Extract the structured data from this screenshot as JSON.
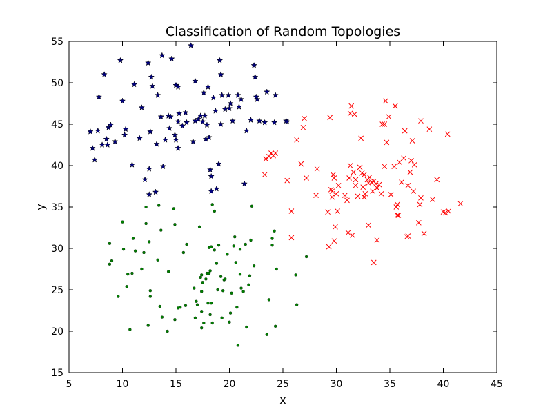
{
  "chart_data": {
    "type": "scatter",
    "title": "Classification of Random Topologies",
    "xlabel": "x",
    "ylabel": "y",
    "xlim": [
      5,
      45
    ],
    "ylim": [
      15,
      55
    ],
    "xticks": [
      5,
      10,
      15,
      20,
      25,
      30,
      35,
      40,
      45
    ],
    "yticks": [
      15,
      20,
      25,
      30,
      35,
      40,
      45,
      50,
      55
    ],
    "grid": false,
    "legend": "none",
    "series": [
      {
        "marker": "star",
        "color": "#00007f",
        "points": [
          [
            7.0,
            44.1
          ],
          [
            7.2,
            42.1
          ],
          [
            7.4,
            40.7
          ],
          [
            7.7,
            44.2
          ],
          [
            7.8,
            48.3
          ],
          [
            8.1,
            42.5
          ],
          [
            8.3,
            51.0
          ],
          [
            8.5,
            43.2
          ],
          [
            8.7,
            44.6
          ],
          [
            8.9,
            44.9
          ],
          [
            8.6,
            42.5
          ],
          [
            9.3,
            42.9
          ],
          [
            9.8,
            52.7
          ],
          [
            10.0,
            47.8
          ],
          [
            10.2,
            43.7
          ],
          [
            10.3,
            44.4
          ],
          [
            10.9,
            40.1
          ],
          [
            11.1,
            49.8
          ],
          [
            11.6,
            43.3
          ],
          [
            11.8,
            47.0
          ],
          [
            12.1,
            38.3
          ],
          [
            12.4,
            52.4
          ],
          [
            12.5,
            39.6
          ],
          [
            12.6,
            44.1
          ],
          [
            12.7,
            50.7
          ],
          [
            12.5,
            36.5
          ],
          [
            12.8,
            49.6
          ],
          [
            13.1,
            36.8
          ],
          [
            13.2,
            42.6
          ],
          [
            13.3,
            48.5
          ],
          [
            13.6,
            45.9
          ],
          [
            13.7,
            53.3
          ],
          [
            13.8,
            39.9
          ],
          [
            14.0,
            43.1
          ],
          [
            14.3,
            46.0
          ],
          [
            14.5,
            45.9
          ],
          [
            14.6,
            52.9
          ],
          [
            14.4,
            44.5
          ],
          [
            14.9,
            43.7
          ],
          [
            15.0,
            49.7
          ],
          [
            15.2,
            49.5
          ],
          [
            15.2,
            45.3
          ],
          [
            15.3,
            46.3
          ],
          [
            15.0,
            43.1
          ],
          [
            15.2,
            42.1
          ],
          [
            15.6,
            44.8
          ],
          [
            15.9,
            46.4
          ],
          [
            16.0,
            45.2
          ],
          [
            16.4,
            54.5
          ],
          [
            16.6,
            42.9
          ],
          [
            16.8,
            50.2
          ],
          [
            16.8,
            45.4
          ],
          [
            17.1,
            45.6
          ],
          [
            17.3,
            46.0
          ],
          [
            17.5,
            45.3
          ],
          [
            17.6,
            48.8
          ],
          [
            17.7,
            46.0
          ],
          [
            17.8,
            43.2
          ],
          [
            17.9,
            44.9
          ],
          [
            18.0,
            49.5
          ],
          [
            18.1,
            43.4
          ],
          [
            18.2,
            39.5
          ],
          [
            18.3,
            38.7
          ],
          [
            18.3,
            36.9
          ],
          [
            18.5,
            48.2
          ],
          [
            18.7,
            46.6
          ],
          [
            18.8,
            37.2
          ],
          [
            19.0,
            40.2
          ],
          [
            19.1,
            52.7
          ],
          [
            19.2,
            51.0
          ],
          [
            19.2,
            45.0
          ],
          [
            19.3,
            48.5
          ],
          [
            19.6,
            46.8
          ],
          [
            19.9,
            48.5
          ],
          [
            20.0,
            46.9
          ],
          [
            20.1,
            47.5
          ],
          [
            20.3,
            45.4
          ],
          [
            20.8,
            48.5
          ],
          [
            20.9,
            47.1
          ],
          [
            21.1,
            48.0
          ],
          [
            21.4,
            37.8
          ],
          [
            21.6,
            44.2
          ],
          [
            22.0,
            45.5
          ],
          [
            22.3,
            52.1
          ],
          [
            22.5,
            48.3
          ],
          [
            22.4,
            50.7
          ],
          [
            22.6,
            48.0
          ],
          [
            22.8,
            45.4
          ],
          [
            23.5,
            48.9
          ],
          [
            23.3,
            45.2
          ],
          [
            24.2,
            45.2
          ],
          [
            24.3,
            48.5
          ],
          [
            25.3,
            45.4
          ],
          [
            25.4,
            45.3
          ]
        ]
      },
      {
        "marker": "x",
        "color": "#ff0000",
        "points": [
          [
            23.3,
            38.9
          ],
          [
            23.4,
            40.8
          ],
          [
            23.7,
            41.1
          ],
          [
            23.9,
            41.5
          ],
          [
            24.1,
            41.2
          ],
          [
            24.3,
            41.5
          ],
          [
            25.4,
            38.2
          ],
          [
            25.8,
            34.5
          ],
          [
            25.8,
            31.3
          ],
          [
            26.3,
            43.1
          ],
          [
            26.7,
            40.2
          ],
          [
            27.0,
            45.7
          ],
          [
            26.9,
            44.6
          ],
          [
            27.2,
            38.5
          ],
          [
            28.1,
            36.4
          ],
          [
            28.2,
            39.6
          ],
          [
            29.2,
            34.4
          ],
          [
            29.3,
            30.2
          ],
          [
            29.4,
            45.8
          ],
          [
            29.5,
            37.1
          ],
          [
            29.6,
            36.9
          ],
          [
            29.7,
            38.9
          ],
          [
            29.8,
            38.5
          ],
          [
            29.6,
            36.2
          ],
          [
            29.8,
            30.9
          ],
          [
            29.9,
            32.6
          ],
          [
            30.0,
            36.6
          ],
          [
            30.2,
            37.6
          ],
          [
            30.1,
            34.5
          ],
          [
            30.8,
            36.4
          ],
          [
            31.0,
            35.8
          ],
          [
            31.1,
            31.9
          ],
          [
            31.2,
            38.5
          ],
          [
            31.3,
            40.0
          ],
          [
            31.3,
            46.3
          ],
          [
            31.4,
            47.2
          ],
          [
            31.5,
            31.6
          ],
          [
            31.6,
            39.2
          ],
          [
            31.7,
            46.2
          ],
          [
            31.8,
            38.3
          ],
          [
            31.8,
            37.6
          ],
          [
            32.0,
            36.3
          ],
          [
            32.2,
            39.8
          ],
          [
            32.3,
            43.3
          ],
          [
            32.4,
            39.1
          ],
          [
            32.5,
            37.4
          ],
          [
            32.6,
            38.9
          ],
          [
            32.6,
            36.2
          ],
          [
            32.7,
            36.6
          ],
          [
            32.9,
            38.3
          ],
          [
            33.0,
            37.9
          ],
          [
            33.0,
            32.8
          ],
          [
            33.1,
            38.6
          ],
          [
            33.3,
            38.0
          ],
          [
            33.4,
            36.9
          ],
          [
            33.5,
            28.3
          ],
          [
            33.5,
            38.1
          ],
          [
            33.7,
            37.8
          ],
          [
            33.8,
            37.3
          ],
          [
            33.8,
            31.0
          ],
          [
            34.0,
            37.7
          ],
          [
            34.2,
            36.6
          ],
          [
            34.3,
            45.0
          ],
          [
            34.5,
            45.0
          ],
          [
            34.6,
            47.8
          ],
          [
            34.7,
            42.8
          ],
          [
            34.5,
            39.9
          ],
          [
            34.9,
            45.9
          ],
          [
            35.1,
            36.5
          ],
          [
            35.4,
            39.9
          ],
          [
            35.5,
            47.2
          ],
          [
            35.6,
            35.0
          ],
          [
            35.7,
            35.3
          ],
          [
            35.7,
            34.0
          ],
          [
            35.8,
            34.0
          ],
          [
            35.9,
            40.4
          ],
          [
            36.1,
            38.0
          ],
          [
            36.3,
            40.9
          ],
          [
            36.4,
            44.2
          ],
          [
            36.6,
            31.4
          ],
          [
            36.7,
            31.5
          ],
          [
            36.9,
            39.2
          ],
          [
            37.0,
            40.6
          ],
          [
            37.1,
            43.0
          ],
          [
            37.2,
            36.9
          ],
          [
            37.3,
            40.1
          ],
          [
            37.7,
            33.1
          ],
          [
            37.8,
            35.3
          ],
          [
            37.9,
            36.1
          ],
          [
            37.9,
            45.4
          ],
          [
            38.2,
            31.8
          ],
          [
            38.7,
            44.4
          ],
          [
            39.0,
            35.9
          ],
          [
            39.4,
            38.3
          ],
          [
            40.0,
            34.4
          ],
          [
            40.2,
            34.3
          ],
          [
            40.4,
            43.8
          ],
          [
            41.6,
            35.4
          ],
          [
            40.5,
            34.5
          ],
          [
            36.7,
            37.6
          ]
        ]
      },
      {
        "marker": "dot",
        "color": "#007f00",
        "points": [
          [
            8.8,
            30.6
          ],
          [
            8.8,
            28.1
          ],
          [
            9.0,
            28.5
          ],
          [
            9.6,
            24.2
          ],
          [
            10.0,
            33.2
          ],
          [
            10.1,
            29.9
          ],
          [
            10.4,
            25.4
          ],
          [
            10.5,
            26.9
          ],
          [
            10.7,
            20.2
          ],
          [
            10.9,
            27.0
          ],
          [
            11.0,
            31.2
          ],
          [
            11.2,
            29.7
          ],
          [
            11.8,
            27.5
          ],
          [
            12.0,
            29.5
          ],
          [
            12.2,
            35.0
          ],
          [
            12.2,
            33.0
          ],
          [
            12.4,
            20.7
          ],
          [
            12.5,
            30.8
          ],
          [
            12.6,
            24.9
          ],
          [
            12.6,
            24.2
          ],
          [
            13.3,
            28.6
          ],
          [
            13.4,
            35.2
          ],
          [
            13.5,
            23.0
          ],
          [
            13.6,
            32.2
          ],
          [
            13.7,
            21.7
          ],
          [
            14.2,
            20.0
          ],
          [
            14.3,
            27.2
          ],
          [
            14.8,
            34.8
          ],
          [
            14.9,
            21.4
          ],
          [
            14.9,
            32.9
          ],
          [
            15.2,
            22.8
          ],
          [
            15.4,
            22.9
          ],
          [
            15.7,
            29.5
          ],
          [
            15.9,
            23.1
          ],
          [
            16.0,
            30.5
          ],
          [
            16.7,
            25.2
          ],
          [
            16.8,
            21.6
          ],
          [
            16.9,
            23.6
          ],
          [
            17.0,
            23.2
          ],
          [
            17.2,
            32.6
          ],
          [
            17.3,
            26.5
          ],
          [
            17.4,
            26.8
          ],
          [
            17.4,
            24.8
          ],
          [
            17.4,
            22.4
          ],
          [
            17.4,
            20.4
          ],
          [
            17.5,
            25.9
          ],
          [
            17.6,
            21.0
          ],
          [
            17.8,
            26.3
          ],
          [
            17.9,
            27.0
          ],
          [
            18.0,
            23.4
          ],
          [
            18.1,
            27.0
          ],
          [
            18.1,
            30.1
          ],
          [
            18.2,
            27.3
          ],
          [
            18.2,
            22.0
          ],
          [
            18.3,
            30.2
          ],
          [
            18.3,
            23.4
          ],
          [
            18.4,
            35.3
          ],
          [
            18.4,
            21.0
          ],
          [
            18.6,
            29.8
          ],
          [
            18.6,
            34.5
          ],
          [
            18.8,
            28.2
          ],
          [
            18.9,
            25.0
          ],
          [
            19.0,
            30.4
          ],
          [
            19.2,
            26.6
          ],
          [
            19.3,
            21.6
          ],
          [
            19.4,
            24.9
          ],
          [
            19.5,
            26.2
          ],
          [
            19.6,
            26.3
          ],
          [
            19.8,
            29.3
          ],
          [
            20.0,
            21.1
          ],
          [
            20.1,
            22.2
          ],
          [
            20.2,
            24.6
          ],
          [
            20.4,
            30.3
          ],
          [
            20.5,
            31.4
          ],
          [
            20.6,
            28.3
          ],
          [
            20.7,
            22.9
          ],
          [
            20.8,
            18.3
          ],
          [
            21.0,
            26.9
          ],
          [
            21.0,
            29.9
          ],
          [
            21.1,
            25.2
          ],
          [
            21.3,
            24.8
          ],
          [
            21.5,
            30.5
          ],
          [
            21.6,
            20.5
          ],
          [
            21.8,
            25.6
          ],
          [
            21.9,
            26.7
          ],
          [
            22.0,
            31.0
          ],
          [
            22.1,
            35.1
          ],
          [
            22.3,
            27.9
          ],
          [
            23.5,
            19.6
          ],
          [
            23.7,
            23.8
          ],
          [
            24.0,
            30.4
          ],
          [
            24.2,
            32.1
          ],
          [
            24.3,
            20.6
          ],
          [
            24.4,
            27.5
          ],
          [
            26.2,
            26.8
          ],
          [
            26.3,
            23.2
          ],
          [
            27.2,
            29.0
          ],
          [
            24.0,
            31.2
          ]
        ]
      }
    ]
  }
}
